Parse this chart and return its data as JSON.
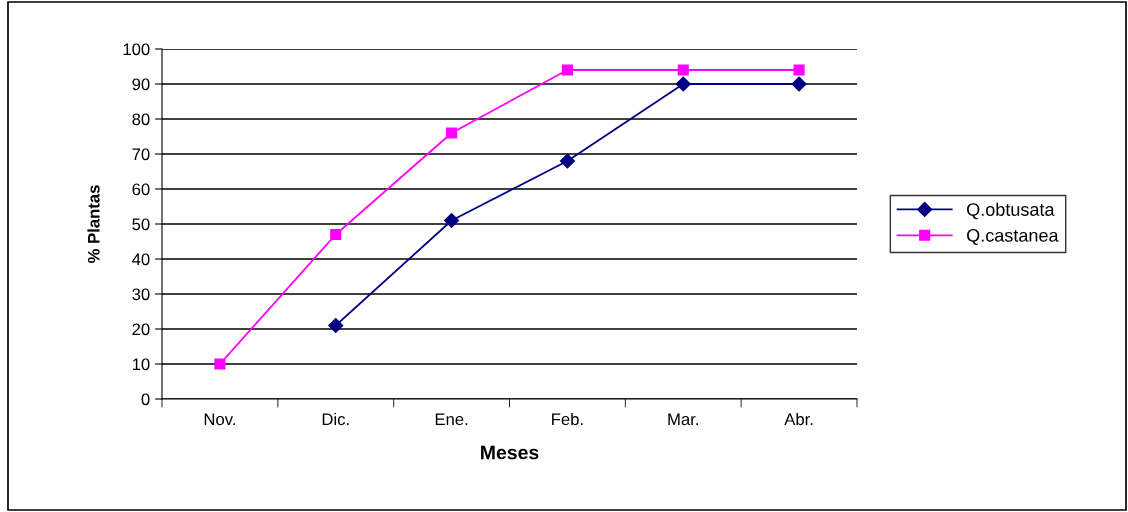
{
  "chart_data": {
    "type": "line",
    "xlabel": "Meses",
    "ylabel": "% Plantas",
    "categories": [
      "Nov.",
      "Dic.",
      "Ene.",
      "Feb.",
      "Mar.",
      "Abr."
    ],
    "series": [
      {
        "name": "Q.obtusata",
        "color": "#000080",
        "marker": "diamond",
        "values": [
          null,
          21,
          51,
          68,
          90,
          90
        ]
      },
      {
        "name": "Q.castanea",
        "color": "#ff00ff",
        "marker": "square",
        "values": [
          10,
          47,
          76,
          94,
          94,
          94
        ]
      }
    ],
    "ylim": [
      0,
      100
    ],
    "yticks": [
      0,
      10,
      20,
      30,
      40,
      50,
      60,
      70,
      80,
      90,
      100
    ],
    "grid": "y",
    "legend": "right",
    "line_style": "solid"
  }
}
